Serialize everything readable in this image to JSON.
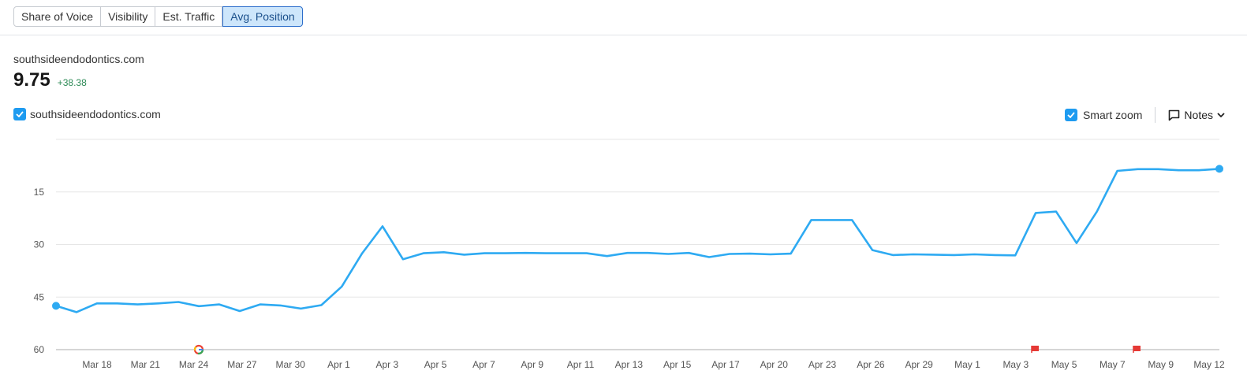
{
  "tabs": [
    {
      "label": "Share of Voice",
      "active": false
    },
    {
      "label": "Visibility",
      "active": false
    },
    {
      "label": "Est. Traffic",
      "active": false
    },
    {
      "label": "Avg. Position",
      "active": true
    }
  ],
  "summary": {
    "domain": "southsideendodontics.com",
    "value": "9.75",
    "delta": "+38.38"
  },
  "legend": {
    "label": "southsideendodontics.com",
    "checked": true
  },
  "controls": {
    "smart_zoom_label": "Smart zoom",
    "smart_zoom_checked": true,
    "notes_label": "Notes"
  },
  "colors": {
    "line": "#2eaaf2",
    "accent": "#1e9bf0",
    "delta": "#2e8b57",
    "flag": "#e53935",
    "grid": "#e6e6e6"
  },
  "chart_data": {
    "type": "line",
    "title": "",
    "xlabel": "",
    "ylabel": "",
    "y_inverted": true,
    "ylim": [
      60,
      0
    ],
    "yticks": [
      15,
      30,
      45,
      60
    ],
    "x_tick_labels": [
      "Mar 18",
      "Mar 21",
      "Mar 24",
      "Mar 27",
      "Mar 30",
      "Apr 1",
      "Apr 3",
      "Apr 5",
      "Apr 7",
      "Apr 9",
      "Apr 11",
      "Apr 13",
      "Apr 15",
      "Apr 17",
      "Apr 20",
      "Apr 23",
      "Apr 26",
      "Apr 29",
      "May 1",
      "May 3",
      "May 5",
      "May 7",
      "May 9",
      "May 12"
    ],
    "series": [
      {
        "values": [
          47.5,
          49.3,
          46.8,
          46.8,
          47.1,
          46.8,
          46.4,
          47.6,
          47.1,
          49.0,
          47.1,
          47.4,
          48.3,
          47.3,
          42.0,
          32.5,
          24.8,
          34.2,
          32.5,
          32.2,
          32.9,
          32.5,
          32.5,
          32.4,
          32.5,
          32.5,
          32.5,
          33.3,
          32.4,
          32.4,
          32.7,
          32.4,
          33.6,
          32.7,
          32.6,
          32.8,
          32.6,
          23.0,
          23.0,
          23.0,
          31.6,
          33.0,
          32.8,
          32.9,
          33.0,
          32.8,
          33.0,
          33.1,
          21.0,
          20.6,
          29.6,
          20.6,
          9.0,
          8.5,
          8.5,
          8.8,
          8.8,
          8.4
        ]
      }
    ],
    "annotations": [
      {
        "type": "google-update",
        "near": "Mar 23"
      },
      {
        "type": "note-flag",
        "near": "May 3"
      },
      {
        "type": "note-flag",
        "near": "May 8"
      }
    ]
  }
}
